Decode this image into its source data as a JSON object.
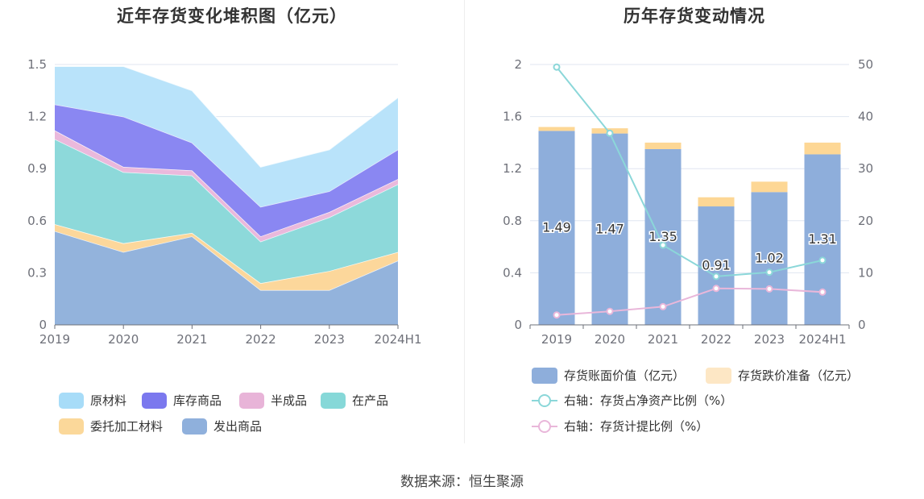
{
  "source": "数据来源：恒生聚源",
  "chart_data": [
    {
      "type": "area",
      "stacked": true,
      "title": "近年存货变化堆积图（亿元）",
      "categories": [
        "2019",
        "2020",
        "2021",
        "2022",
        "2023",
        "2024H1"
      ],
      "y_ticks": [
        "0",
        "0.3",
        "0.6",
        "0.9",
        "1.2",
        "1.5"
      ],
      "ylim": [
        0,
        1.5
      ],
      "series": [
        {
          "name": "发出商品",
          "color": "#93b3dc",
          "values": [
            0.54,
            0.42,
            0.51,
            0.2,
            0.2,
            0.37
          ]
        },
        {
          "name": "委托加工材料",
          "color": "#fcd79b",
          "values": [
            0.04,
            0.05,
            0.02,
            0.04,
            0.11,
            0.05
          ]
        },
        {
          "name": "在产品",
          "color": "#8dd9da",
          "values": [
            0.49,
            0.41,
            0.33,
            0.24,
            0.31,
            0.39
          ]
        },
        {
          "name": "半成品",
          "color": "#eab9dc",
          "values": [
            0.05,
            0.03,
            0.03,
            0.03,
            0.03,
            0.03
          ]
        },
        {
          "name": "库存商品",
          "color": "#8a87f2",
          "values": [
            0.15,
            0.29,
            0.16,
            0.17,
            0.12,
            0.17
          ]
        },
        {
          "name": "原材料",
          "color": "#b9e3fa",
          "values": [
            0.22,
            0.29,
            0.3,
            0.23,
            0.24,
            0.3
          ]
        }
      ],
      "legend": [
        {
          "name": "原材料",
          "color": "#a7dcf8"
        },
        {
          "name": "库存商品",
          "color": "#7b78ee"
        },
        {
          "name": "半成品",
          "color": "#e8b4d8"
        },
        {
          "name": "在产品",
          "color": "#86d8d8"
        },
        {
          "name": "委托加工材料",
          "color": "#fbd89a"
        },
        {
          "name": "发出商品",
          "color": "#8fb0dc"
        }
      ]
    },
    {
      "type": "bar",
      "stacked": true,
      "title": "历年存货变动情况",
      "categories": [
        "2019",
        "2020",
        "2021",
        "2022",
        "2023",
        "2024H1"
      ],
      "y_left_ticks": [
        "0",
        "0.4",
        "0.8",
        "1.2",
        "1.6",
        "2"
      ],
      "ylim_left": [
        0,
        2
      ],
      "y_right_ticks": [
        "0",
        "10",
        "20",
        "30",
        "40",
        "50"
      ],
      "ylim_right": [
        0,
        50
      ],
      "series": [
        {
          "name": "存货账面价值（亿元）",
          "color": "#8eaedb",
          "axis": "left",
          "values": [
            1.49,
            1.47,
            1.35,
            0.91,
            1.02,
            1.31
          ],
          "labels": [
            "1.49",
            "1.47",
            "1.35",
            "0.91",
            "1.02",
            "1.31"
          ]
        },
        {
          "name": "存货跌价准备（亿元）",
          "color": "#fdd795",
          "axis": "left",
          "values": [
            0.03,
            0.04,
            0.05,
            0.07,
            0.08,
            0.09
          ]
        },
        {
          "name": "右轴：存货占净资产比例（%）",
          "type": "line",
          "color": "#8bd7d9",
          "axis": "right",
          "values": [
            49.5,
            36.8,
            15.3,
            9.3,
            10.1,
            12.4
          ]
        },
        {
          "name": "右轴：存货计提比例（%）",
          "type": "line",
          "color": "#e9b7da",
          "axis": "right",
          "values": [
            1.9,
            2.6,
            3.5,
            7.0,
            6.9,
            6.3
          ]
        }
      ]
    }
  ]
}
